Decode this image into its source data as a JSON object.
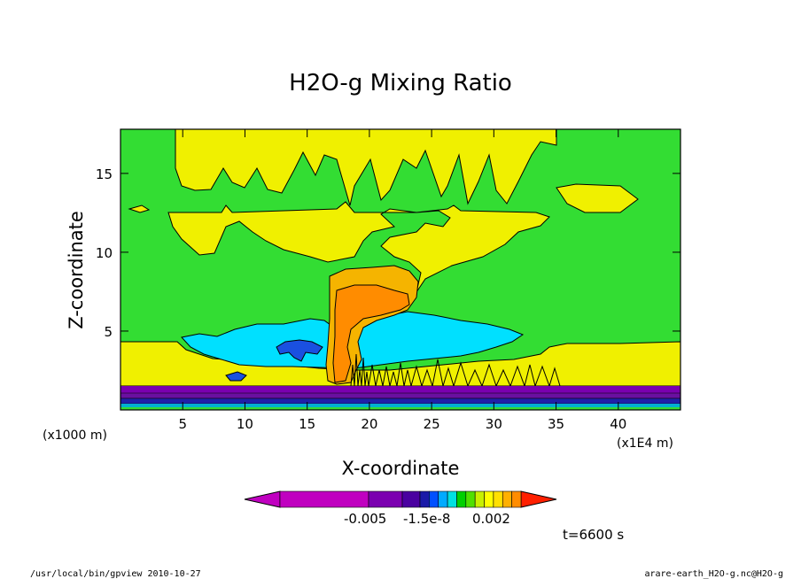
{
  "chart_data": {
    "type": "heatmap",
    "title": "H2O-g Mixing Ratio",
    "xlabel": "X-coordinate",
    "ylabel": "Z-coordinate",
    "xunit": "(x1E4 m)",
    "yunit": "(x1000 m)",
    "xlim": [
      0,
      45
    ],
    "ylim": [
      0,
      17.8
    ],
    "xticks": [
      5,
      10,
      15,
      20,
      25,
      30,
      35,
      40
    ],
    "xtick_labels": [
      "5",
      "10",
      "15",
      "20",
      "25",
      "30",
      "35",
      "40"
    ],
    "yticks": [
      5,
      10,
      15
    ],
    "ytick_labels": [
      "5",
      "10",
      "15"
    ],
    "colorbar": {
      "tick_labels": [
        "-0.005",
        "-1.5e-8",
        "0.002"
      ],
      "colors": [
        "#c000c0",
        "#c000c0",
        "#7b00b0",
        "#4a00a0",
        "#1a1aa8",
        "#0050ff",
        "#00aaff",
        "#00e0e0",
        "#00d000",
        "#50e000",
        "#c8f000",
        "#ffff00",
        "#ffe000",
        "#ffb000",
        "#ff8c00",
        "#ff2000"
      ]
    },
    "regions": [
      {
        "level": "green",
        "color": "#33dd33"
      },
      {
        "level": "yellow",
        "color": "#f0f000"
      },
      {
        "level": "cyan",
        "color": "#00e0ff"
      },
      {
        "level": "blue",
        "color": "#1a50e0"
      },
      {
        "level": "orange",
        "color": "#ff9000"
      },
      {
        "level": "purple",
        "color": "#6a10a0"
      }
    ]
  },
  "time_label": "t=6600 s",
  "footer_left": "/usr/local/bin/gpview  2010-10-27",
  "footer_right": "arare-earth_H2O-g.nc@H2O-g"
}
